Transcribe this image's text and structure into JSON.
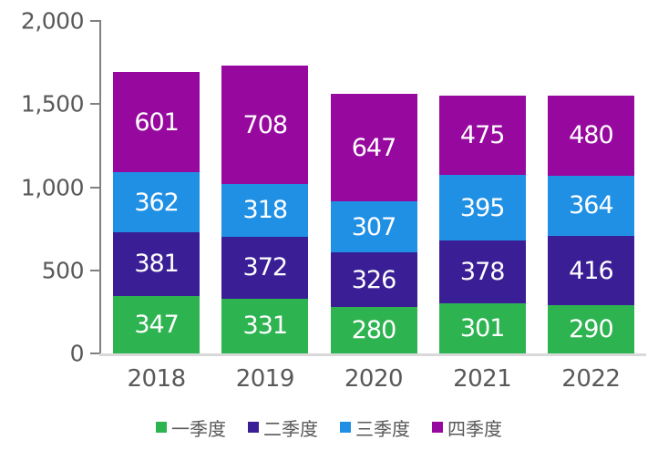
{
  "chart_data": {
    "type": "bar",
    "stacked": true,
    "title": "",
    "xlabel": "",
    "ylabel": "",
    "categories": [
      "2018",
      "2019",
      "2020",
      "2021",
      "2022"
    ],
    "series": [
      {
        "name": "一季度",
        "color": "#2eb351",
        "values": [
          347,
          331,
          280,
          301,
          290
        ]
      },
      {
        "name": "二季度",
        "color": "#3a1e96",
        "values": [
          381,
          372,
          326,
          378,
          416
        ]
      },
      {
        "name": "三季度",
        "color": "#2090e5",
        "values": [
          362,
          318,
          307,
          395,
          364
        ]
      },
      {
        "name": "四季度",
        "color": "#97089e",
        "values": [
          601,
          708,
          647,
          475,
          480
        ]
      }
    ],
    "ylim": [
      0,
      2000
    ],
    "yticks": [
      {
        "value": 0,
        "label": "0"
      },
      {
        "value": 500,
        "label": "500"
      },
      {
        "value": 1000,
        "label": "1,000"
      },
      {
        "value": 1500,
        "label": "1,500"
      },
      {
        "value": 2000,
        "label": "2,000"
      }
    ],
    "grid": false,
    "legend_position": "bottom",
    "bar_label_color": "#ffffff",
    "axis_color": "#808080",
    "baseline_color": "#d9d9d9",
    "text_color": "#595959"
  }
}
